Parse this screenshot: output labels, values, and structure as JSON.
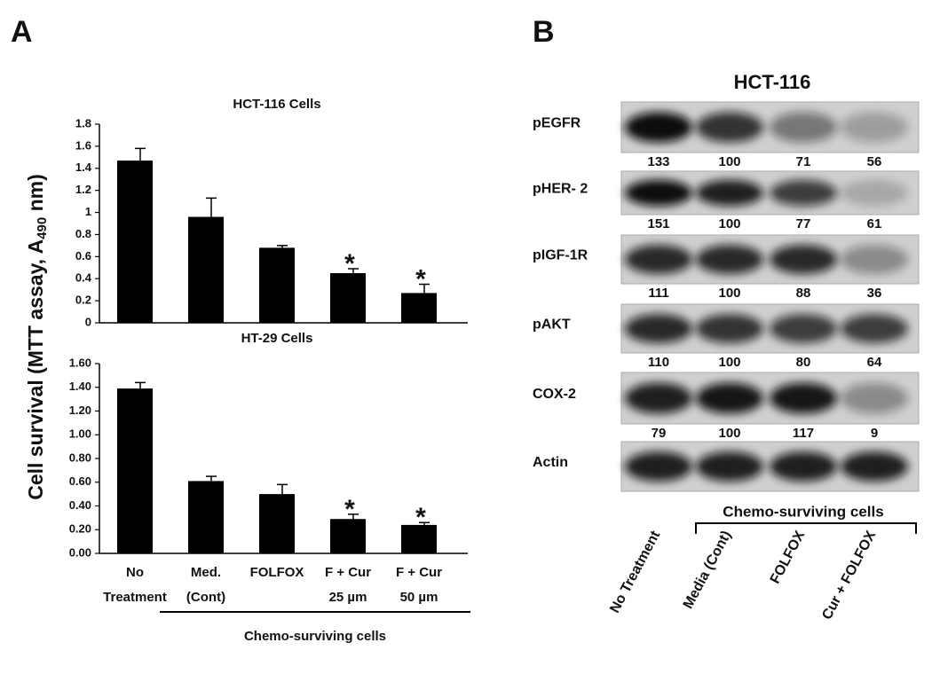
{
  "panel_a": {
    "label": "A",
    "y_label": {
      "text": "Cell survival (MTT assay, A",
      "sub": "490",
      "tail": " nm)"
    }
  },
  "chart_data": [
    {
      "type": "bar",
      "title": "HCT-116 Cells",
      "color": "#000000",
      "categories": [
        null,
        null,
        null,
        null,
        null
      ],
      "values": [
        1.47,
        0.96,
        0.68,
        0.45,
        0.27
      ],
      "errors": [
        0.11,
        0.17,
        0.02,
        0.04,
        0.08
      ],
      "marker": "*",
      "significant": [
        false,
        false,
        false,
        true,
        true
      ],
      "ylim": [
        0,
        1.8
      ],
      "yticks": [
        0,
        0.2,
        0.4,
        0.6,
        0.8,
        1,
        1.2,
        1.4,
        1.6,
        1.8
      ]
    },
    {
      "type": "bar",
      "title": "HT-29 Cells",
      "color": "#000000",
      "categories": [
        [
          "No",
          "Treatment"
        ],
        [
          "Med.",
          "(Cont)"
        ],
        [
          "FOLFOX"
        ],
        [
          "F + Cur",
          "25 µm"
        ],
        [
          "F + Cur",
          "50 µm"
        ]
      ],
      "values": [
        1.39,
        0.61,
        0.5,
        0.29,
        0.24
      ],
      "errors": [
        0.05,
        0.04,
        0.08,
        0.04,
        0.02
      ],
      "marker": "*",
      "significant": [
        false,
        false,
        false,
        true,
        true
      ],
      "ylim": [
        0,
        1.6
      ],
      "yticks": [
        {
          "value": 0,
          "label": "0.00"
        },
        {
          "value": 0.2,
          "label": "0.20"
        },
        {
          "value": 0.4,
          "label": "0.40"
        },
        {
          "value": 0.6,
          "label": "0.60"
        },
        {
          "value": 0.8,
          "label": "0.80"
        },
        {
          "value": 1,
          "label": "1.00"
        },
        {
          "value": 1.2,
          "label": "1.20"
        },
        {
          "value": 1.4,
          "label": "1.40"
        },
        {
          "value": 1.6,
          "label": "1.60"
        }
      ],
      "group_label": "Chemo-surviving cells"
    }
  ],
  "panel_b": {
    "label": "B",
    "title": "HCT-116",
    "rows": [
      {
        "name": "pEGFR",
        "values": [
          133,
          100,
          71,
          56
        ]
      },
      {
        "name": "pHER- 2",
        "values": [
          151,
          100,
          77,
          61
        ]
      },
      {
        "name": "pIGF-1R",
        "values": [
          111,
          100,
          88,
          36
        ]
      },
      {
        "name": "pAKT",
        "values": [
          110,
          100,
          80,
          64
        ]
      },
      {
        "name": "COX-2",
        "values": [
          79,
          100,
          117,
          9
        ]
      },
      {
        "name": "Actin"
      }
    ],
    "group_label": "Chemo-surviving cells",
    "lanes": [
      "No Treatment",
      "Media (Cont)",
      "FOLFOX",
      "Cur + FOLFOX"
    ]
  }
}
